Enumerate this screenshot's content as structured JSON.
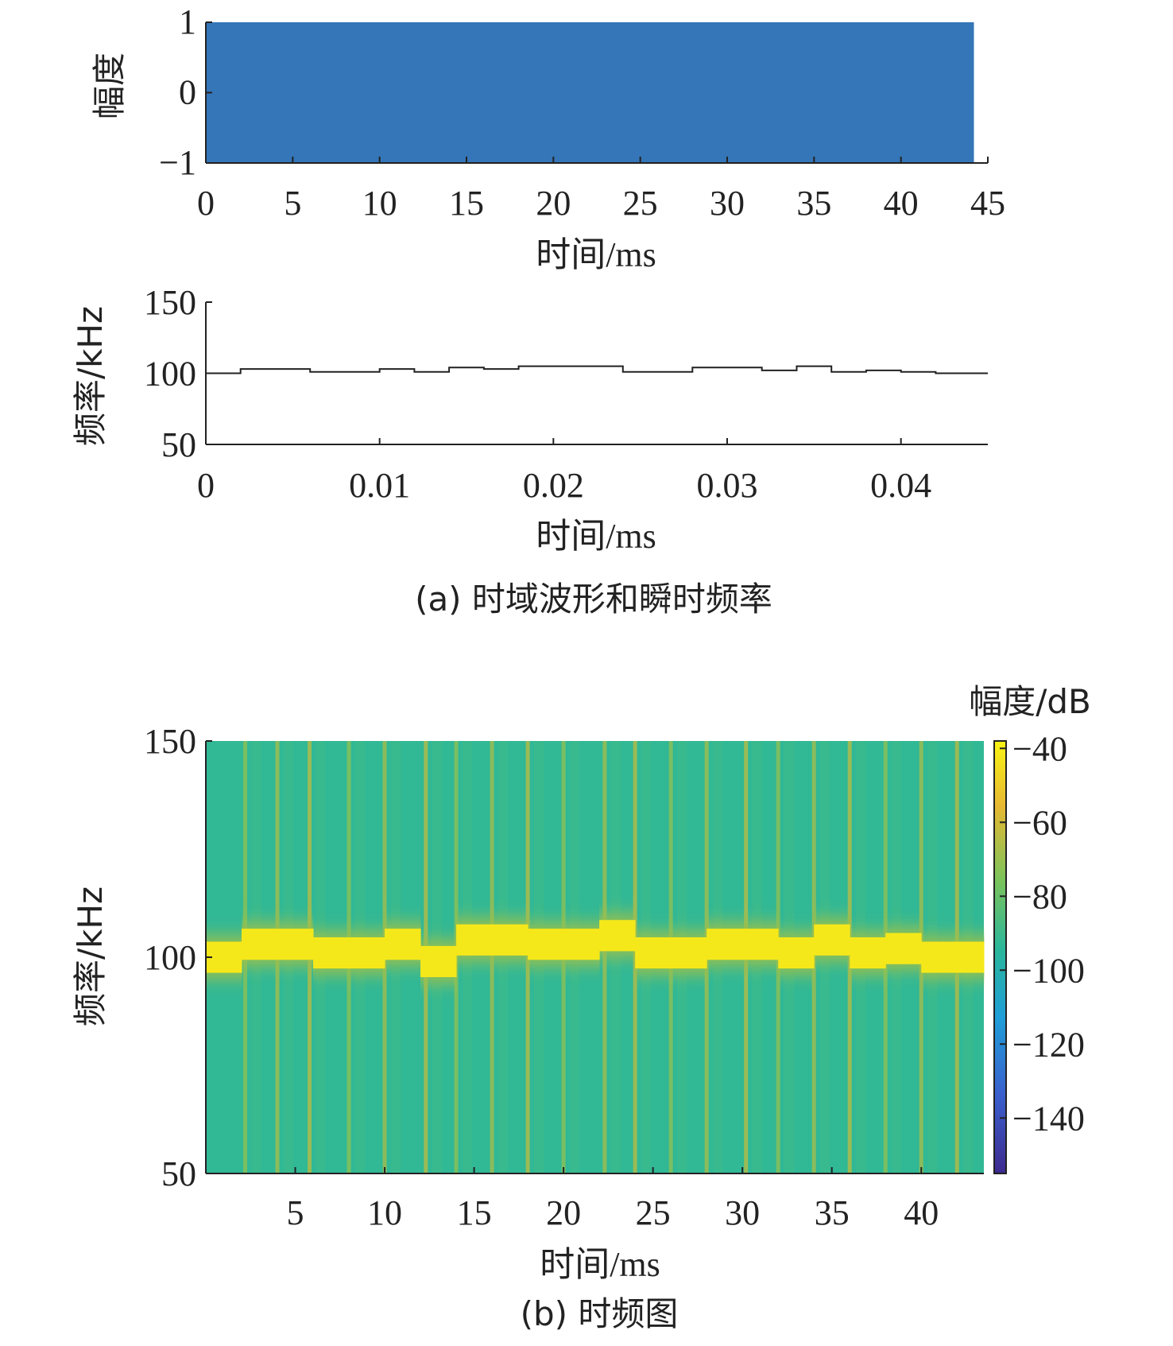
{
  "figure": {
    "caption_a": "(a) 时域波形和瞬时频率",
    "caption_b": "(b) 时频图"
  },
  "chart_data": [
    {
      "type": "area",
      "panel": "a-top",
      "title": "",
      "xlabel": "时间/ms",
      "ylabel": "幅度",
      "xlim": [
        0,
        45
      ],
      "ylim": [
        -1,
        1
      ],
      "xticks": [
        0,
        5,
        10,
        15,
        20,
        25,
        30,
        35,
        40,
        45
      ],
      "yticks": [
        -1,
        0,
        1
      ],
      "ytick_labels": [
        "−1",
        "0",
        "1"
      ],
      "series": [
        {
          "x_range": [
            0,
            44.2
          ],
          "y_range": [
            -1,
            1
          ],
          "fill": "#3576b8"
        }
      ],
      "grid": false
    },
    {
      "type": "line",
      "panel": "a-bottom",
      "title": "",
      "xlabel": "时间/ms",
      "ylabel": "频率/kHz",
      "xlim": [
        0,
        0.045
      ],
      "ylim": [
        50,
        150
      ],
      "xticks": [
        0,
        0.01,
        0.02,
        0.03,
        0.04
      ],
      "xtick_labels": [
        "0",
        "0.01",
        "0.02",
        "0.03",
        "0.04"
      ],
      "yticks": [
        50,
        100,
        150
      ],
      "series": [
        {
          "x": [
            0,
            0.002,
            0.002,
            0.006,
            0.006,
            0.01,
            0.01,
            0.012,
            0.012,
            0.014,
            0.014,
            0.016,
            0.016,
            0.018,
            0.018,
            0.024,
            0.024,
            0.028,
            0.028,
            0.032,
            0.032,
            0.034,
            0.034,
            0.036,
            0.036,
            0.038,
            0.038,
            0.04,
            0.04,
            0.042,
            0.042,
            0.045
          ],
          "values": [
            100,
            100,
            103,
            103,
            101,
            101,
            103,
            103,
            101,
            101,
            104,
            104,
            103,
            103,
            105,
            105,
            101,
            101,
            104,
            104,
            102,
            102,
            105,
            105,
            101,
            101,
            102,
            102,
            101,
            101,
            100,
            100
          ]
        }
      ],
      "grid": false
    },
    {
      "type": "heatmap",
      "panel": "b",
      "title": "",
      "xlabel": "时间/ms",
      "ylabel": "频率/kHz",
      "xlim": [
        0,
        43.5
      ],
      "ylim": [
        50,
        150
      ],
      "xticks": [
        5,
        10,
        15,
        20,
        25,
        30,
        35,
        40
      ],
      "yticks": [
        50,
        100,
        150
      ],
      "colorbar": {
        "label": "幅度/dB",
        "ticks": [
          -40,
          -60,
          -80,
          -100,
          -120,
          -140
        ],
        "tick_labels": [
          "−40",
          "−60",
          "−80",
          "−100",
          "−120",
          "−140"
        ],
        "range": [
          -155,
          -38
        ],
        "colors": [
          "#3e2a8f",
          "#3a5fcd",
          "#1f9ed8",
          "#2bb79a",
          "#7cc35a",
          "#e7b832",
          "#f8f414"
        ]
      },
      "ridge": {
        "x": [
          0,
          2,
          6,
          10,
          12,
          14,
          18,
          22,
          24,
          28,
          32,
          34,
          36,
          38,
          40,
          42,
          43.5
        ],
        "freq_khz": [
          100,
          103,
          101,
          103,
          99,
          104,
          103,
          105,
          101,
          103,
          101,
          104,
          101,
          102,
          100,
          100,
          100
        ],
        "level_db": -42
      },
      "background_db": -95,
      "transient_lines_ms": [
        2.2,
        4,
        5.8,
        8,
        10,
        12.3,
        14,
        16,
        18,
        20,
        22.3,
        24,
        26,
        28,
        30.2,
        32,
        34,
        36,
        38,
        40,
        42
      ]
    }
  ]
}
